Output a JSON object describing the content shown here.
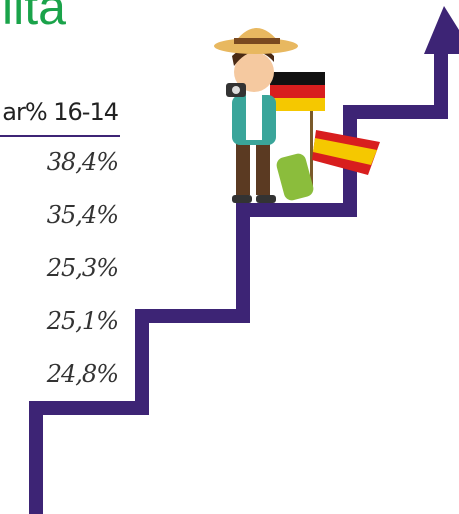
{
  "header": {
    "title": "lita",
    "column": "ar% 16-14"
  },
  "table": {
    "rows": [
      "38,4%",
      "35,4%",
      "25,3%",
      "25,1%",
      "24,8%"
    ]
  }
}
